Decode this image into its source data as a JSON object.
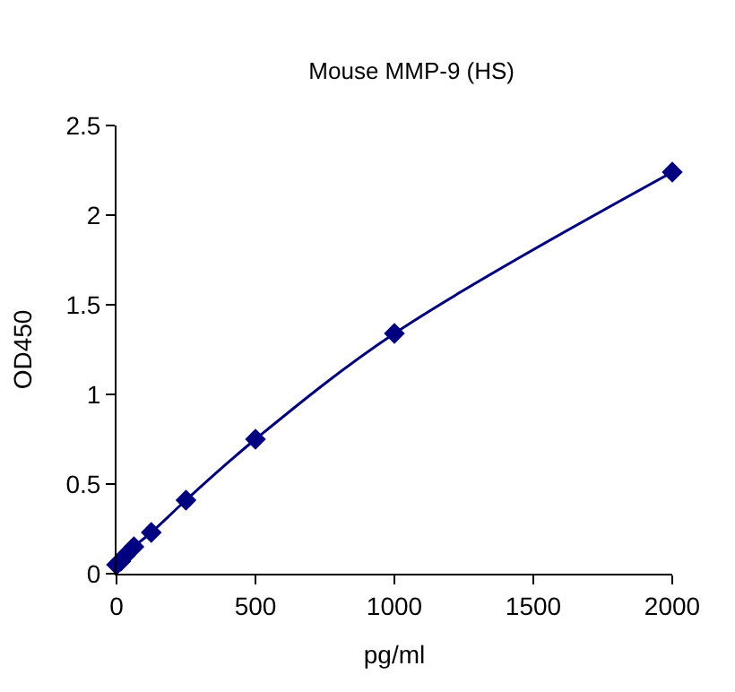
{
  "chart_data": {
    "type": "line",
    "title": "Mouse MMP-9 (HS)",
    "xlabel": "pg/ml",
    "ylabel": "OD450",
    "x": [
      0,
      15.6,
      31.25,
      62.5,
      125,
      250,
      500,
      1000,
      2000
    ],
    "series": [
      {
        "color": "#000080",
        "values": [
          0.05,
          0.07,
          0.1,
          0.15,
          0.23,
          0.41,
          0.75,
          1.34,
          2.24
        ]
      }
    ],
    "xlim": [
      0,
      2000
    ],
    "xticks": [
      0,
      500,
      1000,
      1500,
      2000
    ],
    "ylim": [
      0,
      2.5
    ],
    "yticks": [
      0,
      0.5,
      1,
      1.5,
      2,
      2.5
    ],
    "legend": false,
    "marker": "diamond",
    "line_style": "solid"
  }
}
